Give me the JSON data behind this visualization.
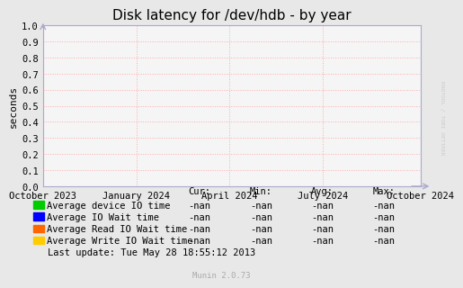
{
  "title": "Disk latency for /dev/hdb - by year",
  "ylabel": "seconds",
  "background_color": "#e8e8e8",
  "plot_background_color": "#f5f5f5",
  "grid_color": "#ffaaaa",
  "axis_color": "#aaaacc",
  "ylim": [
    0.0,
    1.0
  ],
  "yticks": [
    0.0,
    0.1,
    0.2,
    0.3,
    0.4,
    0.5,
    0.6,
    0.7,
    0.8,
    0.9,
    1.0
  ],
  "xtick_labels": [
    "October 2023",
    "January 2024",
    "April 2024",
    "July 2024",
    "October 2024"
  ],
  "xtick_positions": [
    0.0,
    0.247,
    0.494,
    0.742,
    1.0
  ],
  "legend_entries": [
    {
      "label": "Average device IO time",
      "color": "#00cc00"
    },
    {
      "label": "Average IO Wait time",
      "color": "#0000ff"
    },
    {
      "label": "Average Read IO Wait time",
      "color": "#ff6600"
    },
    {
      "label": "Average Write IO Wait time",
      "color": "#ffcc00"
    }
  ],
  "table_headers": [
    "Cur:",
    "Min:",
    "Avg:",
    "Max:"
  ],
  "table_values": [
    [
      "-nan",
      "-nan",
      "-nan",
      "-nan"
    ],
    [
      "-nan",
      "-nan",
      "-nan",
      "-nan"
    ],
    [
      "-nan",
      "-nan",
      "-nan",
      "-nan"
    ],
    [
      "-nan",
      "-nan",
      "-nan",
      "-nan"
    ]
  ],
  "last_update": "Last update: Tue May 28 18:55:12 2013",
  "watermark": "Munin 2.0.73",
  "rrdtool_label": "RRDTOOL / TOBI OETIKER",
  "title_fontsize": 11,
  "ylabel_fontsize": 8,
  "tick_fontsize": 7.5,
  "legend_fontsize": 7.5,
  "table_fontsize": 7.5
}
